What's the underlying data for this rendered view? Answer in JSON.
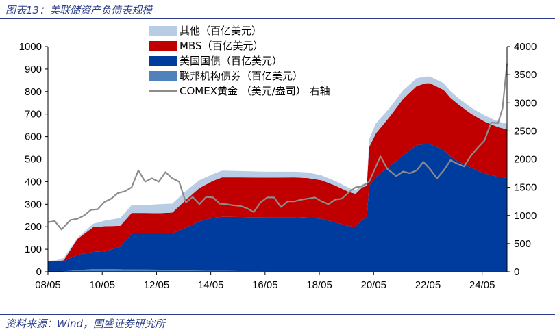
{
  "title": "图表13：美联储资产负债表规模",
  "source": "资料来源：Wind，国盛证券研究所",
  "chart_data": {
    "type": "area",
    "title": "图表13：美联储资产负债表规模",
    "xlabel": "",
    "ylabel": "",
    "legend_position": "top-left",
    "grid": false,
    "ylim_left": [
      0,
      1000
    ],
    "ylim_right": [
      0,
      4000
    ],
    "y_left_ticks": [
      "0",
      "100",
      "200",
      "300",
      "400",
      "500",
      "600",
      "700",
      "800",
      "900",
      "1000"
    ],
    "y_right_ticks": [
      "0",
      "500",
      "1000",
      "1500",
      "2000",
      "2500",
      "3000",
      "3500",
      "4000"
    ],
    "x_tick_labels": [
      "08/05",
      "10/05",
      "12/05",
      "14/05",
      "16/05",
      "18/05",
      "20/05",
      "22/05",
      "24/05"
    ],
    "x_range": [
      "2008-05",
      "2025-04"
    ],
    "stacking": "stacked",
    "series": [
      {
        "name": "其他（百亿美元）",
        "axis": "left",
        "color": "#b8cce4",
        "x": [
          "2008-05",
          "2008-09",
          "2008-12",
          "2009-06",
          "2010-01",
          "2010-06",
          "2011-01",
          "2011-06",
          "2011-12",
          "2012-06",
          "2012-12",
          "2013-06",
          "2013-12",
          "2014-06",
          "2014-10",
          "2015-06",
          "2016-06",
          "2017-06",
          "2017-12",
          "2018-06",
          "2018-12",
          "2019-06",
          "2019-09",
          "2019-12",
          "2020-02",
          "2020-03",
          "2020-06",
          "2020-12",
          "2021-06",
          "2021-12",
          "2022-04",
          "2022-06",
          "2022-12",
          "2023-03",
          "2023-06",
          "2023-12",
          "2024-06",
          "2024-12",
          "2025-04"
        ],
        "values": [
          2,
          5,
          10,
          5,
          15,
          25,
          35,
          35,
          35,
          40,
          40,
          40,
          35,
          30,
          30,
          28,
          26,
          25,
          25,
          22,
          20,
          18,
          15,
          14,
          12,
          35,
          45,
          40,
          38,
          35,
          30,
          30,
          30,
          30,
          28,
          28,
          28,
          25,
          25
        ]
      },
      {
        "name": "MBS（百亿美元）",
        "axis": "left",
        "color": "#c00000",
        "x": [
          "2008-05",
          "2008-09",
          "2008-12",
          "2009-06",
          "2010-01",
          "2010-06",
          "2011-01",
          "2011-06",
          "2011-12",
          "2012-06",
          "2012-12",
          "2013-06",
          "2013-12",
          "2014-06",
          "2014-10",
          "2015-06",
          "2016-06",
          "2017-06",
          "2017-12",
          "2018-06",
          "2018-12",
          "2019-06",
          "2019-09",
          "2019-12",
          "2020-02",
          "2020-03",
          "2020-06",
          "2020-12",
          "2021-06",
          "2021-12",
          "2022-04",
          "2022-06",
          "2022-12",
          "2023-03",
          "2023-06",
          "2023-12",
          "2024-06",
          "2024-12",
          "2025-04"
        ],
        "values": [
          0,
          0,
          3,
          70,
          110,
          112,
          93,
          91,
          88,
          88,
          92,
          123,
          148,
          165,
          175,
          176,
          176,
          177,
          176,
          171,
          164,
          152,
          147,
          143,
          140,
          170,
          192,
          220,
          250,
          262,
          270,
          270,
          265,
          260,
          255,
          240,
          230,
          220,
          215
        ]
      },
      {
        "name": "美国国债（百亿美元）",
        "axis": "left",
        "color": "#003c9d",
        "x": [
          "2008-05",
          "2008-09",
          "2008-12",
          "2009-06",
          "2010-01",
          "2010-06",
          "2011-01",
          "2011-06",
          "2011-12",
          "2012-06",
          "2012-12",
          "2013-06",
          "2013-12",
          "2014-06",
          "2014-10",
          "2015-06",
          "2016-06",
          "2017-06",
          "2017-12",
          "2018-06",
          "2018-12",
          "2019-06",
          "2019-09",
          "2019-12",
          "2020-02",
          "2020-03",
          "2020-06",
          "2020-12",
          "2021-06",
          "2021-12",
          "2022-04",
          "2022-06",
          "2022-12",
          "2023-03",
          "2023-06",
          "2023-12",
          "2024-06",
          "2024-12",
          "2025-04"
        ],
        "values": [
          46,
          46,
          46,
          68,
          76,
          78,
          100,
          160,
          163,
          163,
          163,
          190,
          219,
          235,
          240,
          240,
          240,
          240,
          238,
          233,
          217,
          201,
          197,
          230,
          240,
          380,
          420,
          465,
          515,
          560,
          565,
          565,
          540,
          510,
          490,
          460,
          435,
          420,
          415
        ]
      },
      {
        "name": "联邦机构债券（百亿美元）",
        "axis": "left",
        "color": "#4f81bd",
        "x": [
          "2008-05",
          "2008-09",
          "2008-12",
          "2009-06",
          "2010-01",
          "2010-06",
          "2011-01",
          "2011-06",
          "2011-12",
          "2012-06",
          "2012-12",
          "2013-06",
          "2013-12",
          "2014-06",
          "2014-10",
          "2015-06",
          "2016-06",
          "2017-06",
          "2017-12",
          "2018-06",
          "2018-12",
          "2019-06",
          "2019-09",
          "2019-12",
          "2020-02",
          "2020-03",
          "2020-06",
          "2020-12",
          "2021-06",
          "2021-12",
          "2022-04",
          "2022-06",
          "2022-12",
          "2023-03",
          "2023-06",
          "2023-12",
          "2024-06",
          "2024-12",
          "2025-04"
        ],
        "values": [
          0,
          0,
          2,
          7,
          12,
          12,
          11,
          10,
          10,
          9,
          8,
          6,
          5,
          4,
          4,
          3,
          2,
          2,
          2,
          2,
          2,
          2,
          2,
          2,
          2,
          2,
          2,
          2,
          2,
          2,
          2,
          2,
          2,
          2,
          2,
          2,
          2,
          2,
          2
        ]
      },
      {
        "name": "COMEX黄金 （美元/盎司） 右轴",
        "axis": "right",
        "color": "#8c8c8c",
        "x": [
          "2008-05",
          "2008-08",
          "2008-11",
          "2009-03",
          "2009-06",
          "2009-09",
          "2009-12",
          "2010-03",
          "2010-06",
          "2010-09",
          "2010-12",
          "2011-03",
          "2011-06",
          "2011-09",
          "2011-12",
          "2012-03",
          "2012-06",
          "2012-09",
          "2012-12",
          "2013-03",
          "2013-06",
          "2013-09",
          "2013-12",
          "2014-03",
          "2014-06",
          "2014-09",
          "2014-12",
          "2015-03",
          "2015-06",
          "2015-09",
          "2015-12",
          "2016-03",
          "2016-06",
          "2016-09",
          "2016-12",
          "2017-03",
          "2017-06",
          "2017-09",
          "2017-12",
          "2018-03",
          "2018-06",
          "2018-09",
          "2018-12",
          "2019-03",
          "2019-06",
          "2019-09",
          "2019-12",
          "2020-03",
          "2020-08",
          "2020-11",
          "2021-03",
          "2021-06",
          "2021-09",
          "2021-12",
          "2022-03",
          "2022-06",
          "2022-09",
          "2022-12",
          "2023-03",
          "2023-06",
          "2023-09",
          "2023-12",
          "2024-03",
          "2024-06",
          "2024-09",
          "2024-12",
          "2025-02",
          "2025-04"
        ],
        "values": [
          880,
          900,
          750,
          920,
          940,
          1000,
          1100,
          1110,
          1240,
          1300,
          1400,
          1430,
          1500,
          1800,
          1600,
          1660,
          1600,
          1770,
          1660,
          1600,
          1230,
          1330,
          1200,
          1330,
          1320,
          1210,
          1200,
          1180,
          1170,
          1130,
          1060,
          1230,
          1320,
          1320,
          1150,
          1250,
          1250,
          1280,
          1300,
          1320,
          1250,
          1200,
          1280,
          1300,
          1410,
          1500,
          1520,
          1600,
          2050,
          1830,
          1700,
          1780,
          1750,
          1800,
          1950,
          1820,
          1660,
          1800,
          1980,
          1920,
          1870,
          2060,
          2200,
          2330,
          2650,
          2640,
          2900,
          3700
        ]
      }
    ]
  },
  "colors": {
    "title_blue": "#2c3e8c",
    "axis": "#000000"
  }
}
